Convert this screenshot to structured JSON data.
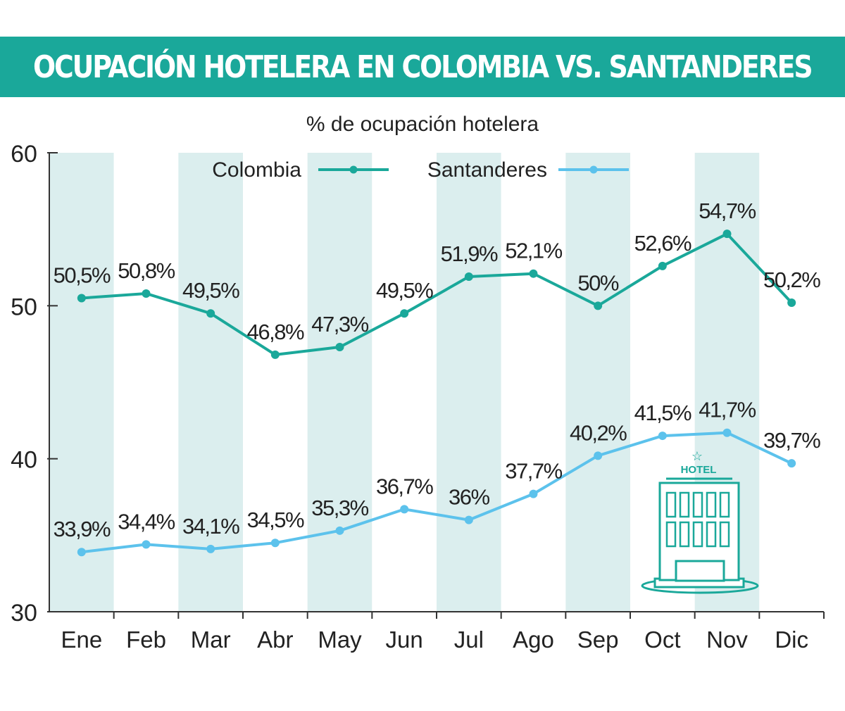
{
  "header": {
    "title": "OCUPACIÓN HOTELERA EN COLOMBIA VS. SANTANDERES"
  },
  "colors": {
    "banner": "#1aa89a",
    "colombia": "#1aa89a",
    "santanderes": "#5cc2ec",
    "band": "#dbeeee",
    "icon": "#1aa89a"
  },
  "icon": {
    "name": "hotel-building-icon",
    "label": "HOTEL"
  },
  "chart_data": {
    "type": "line",
    "title": "% de ocupación hotelera",
    "categories": [
      "Ene",
      "Feb",
      "Mar",
      "Abr",
      "May",
      "Jun",
      "Jul",
      "Ago",
      "Sep",
      "Oct",
      "Nov",
      "Dic"
    ],
    "yticks": [
      "60",
      "50",
      "40",
      "30"
    ],
    "ylim": [
      30,
      60
    ],
    "grid": "alternating month bands",
    "legend_position": "top",
    "series": [
      {
        "name": "Colombia",
        "values": [
          50.5,
          50.8,
          49.5,
          46.8,
          47.3,
          49.5,
          51.9,
          52.1,
          50,
          52.6,
          54.7,
          50.2
        ],
        "labels": [
          "50,5%",
          "50,8%",
          "49,5%",
          "46,8%",
          "47,3%",
          "49,5%",
          "51,9%",
          "52,1%",
          "50%",
          "52,6%",
          "54,7%",
          "50,2%"
        ]
      },
      {
        "name": "Santanderes",
        "values": [
          33.9,
          34.4,
          34.1,
          34.5,
          35.3,
          36.7,
          36,
          37.7,
          40.2,
          41.5,
          41.7,
          39.7
        ],
        "labels": [
          "33,9%",
          "34,4%",
          "34,1%",
          "34,5%",
          "35,3%",
          "36,7%",
          "36%",
          "37,7%",
          "40,2%",
          "41,5%",
          "41,7%",
          "39,7%"
        ]
      }
    ]
  }
}
